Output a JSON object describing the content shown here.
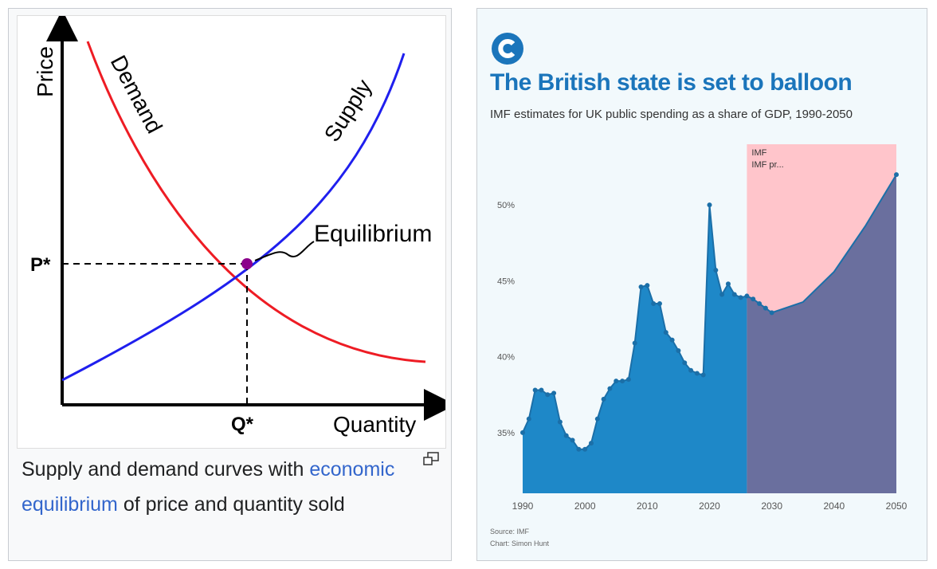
{
  "left": {
    "diagram": {
      "y_axis_label": "Price",
      "x_axis_label": "Quantity",
      "demand_label": "Demand",
      "supply_label": "Supply",
      "equilibrium_label": "Equilibrium",
      "price_marker": "P*",
      "quantity_marker": "Q*"
    },
    "caption": {
      "text_before": "Supply and demand curves with ",
      "link_text": "economic equilibrium",
      "text_after": " of price and quantity sold"
    },
    "icons": {
      "expand": "expand-icon"
    }
  },
  "right": {
    "logo": "c-logo-icon",
    "title": "The British state is set to balloon",
    "subtitle": "IMF estimates for UK public spending as a share of GDP, 1990-2050",
    "source": "Source: IMF",
    "credit": "Chart: Simon Hunt",
    "colors": {
      "historical_fill": "#1e88c8",
      "historical_line": "#1b6fa8",
      "projection_fill": "#6a6f9e",
      "projection_band": "#ffc5cb",
      "background": "#f2f9fc",
      "title": "#1b75bb"
    }
  },
  "chart_data": [
    {
      "type": "line",
      "title": "",
      "xlabel": "Quantity",
      "ylabel": "Price",
      "series": [
        {
          "name": "Demand",
          "x": [
            0.08,
            0.2,
            0.3,
            0.4,
            0.5,
            0.6,
            0.7,
            0.8,
            0.94
          ],
          "y": [
            1.0,
            0.77,
            0.63,
            0.52,
            0.41,
            0.33,
            0.25,
            0.18,
            0.11
          ]
        },
        {
          "name": "Supply",
          "x": [
            0.0,
            0.2,
            0.4,
            0.5,
            0.6,
            0.7,
            0.8,
            0.9
          ],
          "y": [
            0.07,
            0.19,
            0.34,
            0.41,
            0.51,
            0.63,
            0.8,
            1.0
          ]
        }
      ],
      "annotations": [
        "Equilibrium",
        "P*",
        "Q*"
      ]
    },
    {
      "type": "area",
      "title": "The British state is set to balloon",
      "subtitle": "IMF estimates for UK public spending as a share of GDP, 1990-2050",
      "xlabel": "",
      "ylabel": "",
      "x_ticks": [
        "1990",
        "2000",
        "2010",
        "2020",
        "2030",
        "2040",
        "2050"
      ],
      "y_ticks": [
        "35%",
        "40%",
        "45%",
        "50%"
      ],
      "xlim": [
        1990,
        2050
      ],
      "ylim": [
        31,
        54
      ],
      "grid": false,
      "legend": [
        "IMF",
        "IMF pr..."
      ],
      "series": [
        {
          "name": "IMF",
          "x": [
            1990,
            1991,
            1992,
            1993,
            1994,
            1995,
            1996,
            1997,
            1998,
            1999,
            2000,
            2001,
            2002,
            2003,
            2004,
            2005,
            2006,
            2007,
            2008,
            2009,
            2010,
            2011,
            2012,
            2013,
            2014,
            2015,
            2016,
            2017,
            2018,
            2019,
            2020,
            2021,
            2022,
            2023,
            2024,
            2025,
            2026
          ],
          "y": [
            35.0,
            35.9,
            37.8,
            37.8,
            37.5,
            37.6,
            35.7,
            34.8,
            34.5,
            33.9,
            33.9,
            34.3,
            35.9,
            37.2,
            37.9,
            38.4,
            38.4,
            38.5,
            40.9,
            44.6,
            44.7,
            43.5,
            43.5,
            41.6,
            41.1,
            40.4,
            39.6,
            39.1,
            38.9,
            38.8,
            50.0,
            45.7,
            44.1,
            44.8,
            44.1,
            43.9,
            44.0
          ]
        },
        {
          "name": "IMF pr...",
          "x": [
            2026,
            2027,
            2028,
            2029,
            2030,
            2035,
            2040,
            2045,
            2050
          ],
          "y": [
            44.0,
            43.8,
            43.5,
            43.2,
            42.9,
            43.6,
            45.6,
            48.6,
            52.0
          ]
        }
      ],
      "projection_range": [
        2026,
        2050
      ]
    }
  ]
}
